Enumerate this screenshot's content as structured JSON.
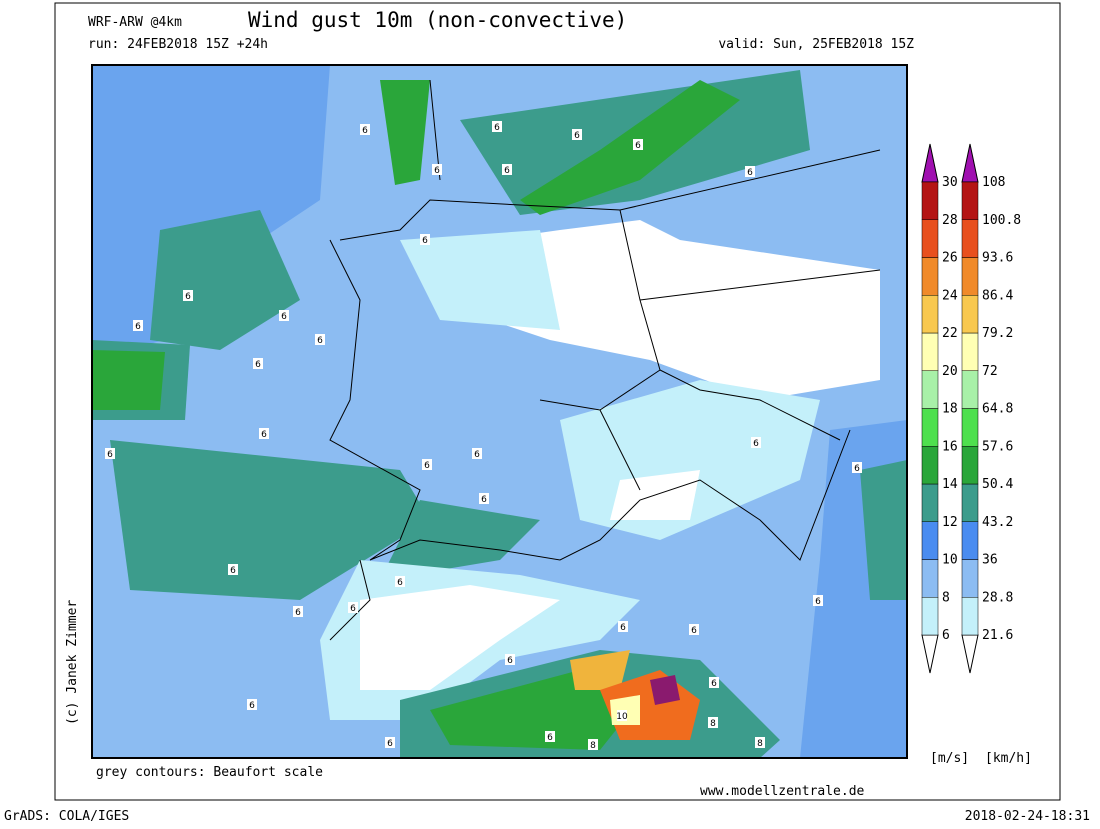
{
  "header": {
    "model": "WRF-ARW @4km",
    "title": "Wind gust 10m (non-convective)",
    "run": "run: 24FEB2018 15Z +24h",
    "valid": "valid: Sun, 25FEB2018 15Z"
  },
  "map": {
    "contour_labels": [
      "6",
      "6",
      "6",
      "6",
      "6",
      "6",
      "6",
      "6",
      "6",
      "6",
      "6",
      "6",
      "6",
      "6",
      "6",
      "6",
      "6",
      "6",
      "6",
      "6",
      "6",
      "6",
      "6",
      "6",
      "6",
      "6",
      "6",
      "6",
      "6",
      "6",
      "10",
      "8",
      "6",
      "6",
      "8",
      "8"
    ]
  },
  "legend": {
    "ms_labels": [
      "6",
      "8",
      "10",
      "12",
      "14",
      "16",
      "18",
      "20",
      "22",
      "24",
      "26",
      "28",
      "30"
    ],
    "kmh_labels": [
      "21.6",
      "28.8",
      "36",
      "43.2",
      "50.4",
      "57.6",
      "64.8",
      "72",
      "79.2",
      "86.4",
      "93.6",
      "100.8",
      "108"
    ],
    "units_ms": "[m/s]",
    "units_kmh": "[km/h]"
  },
  "footer": {
    "note": "grey contours: Beaufort scale",
    "website": "www.modellzentrale.de",
    "credit": "(c) Janek Zimmer",
    "grads": "GrADS: COLA/IGES",
    "timestamp": "2018-02-24-18:31"
  }
}
